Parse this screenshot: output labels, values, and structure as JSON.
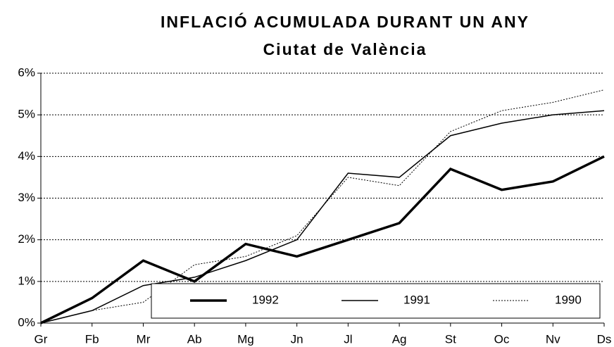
{
  "chart_data": {
    "type": "line",
    "title": "INFLACIÓ ACUMULADA DURANT UN ANY",
    "subtitle": "Ciutat de València",
    "categories": [
      "Gr",
      "Fb",
      "Mr",
      "Ab",
      "Mg",
      "Jn",
      "Jl",
      "Ag",
      "St",
      "Oc",
      "Nv",
      "Ds"
    ],
    "series": [
      {
        "name": "1992",
        "color": "#000000",
        "values": [
          0,
          0.6,
          1.5,
          1.0,
          1.9,
          1.6,
          2.0,
          2.4,
          3.7,
          3.2,
          3.4,
          4.0
        ]
      },
      {
        "name": "1991",
        "color": "#000000",
        "values": [
          0,
          0.3,
          0.9,
          1.1,
          1.5,
          2.0,
          3.6,
          3.5,
          4.5,
          4.8,
          5.0,
          5.1
        ]
      },
      {
        "name": "1990",
        "color": "#000000",
        "values": [
          0,
          0.3,
          0.5,
          1.4,
          1.6,
          2.1,
          3.5,
          3.3,
          4.6,
          5.1,
          5.3,
          5.6
        ]
      }
    ],
    "ylim": [
      0,
      6
    ],
    "yticks": [
      {
        "value": 0,
        "label": "0%"
      },
      {
        "value": 1,
        "label": "1%"
      },
      {
        "value": 2,
        "label": "2%"
      },
      {
        "value": 3,
        "label": "3%"
      },
      {
        "value": 4,
        "label": "4%"
      },
      {
        "value": 5,
        "label": "5%"
      },
      {
        "value": 6,
        "label": "6%"
      }
    ],
    "grid": true
  }
}
